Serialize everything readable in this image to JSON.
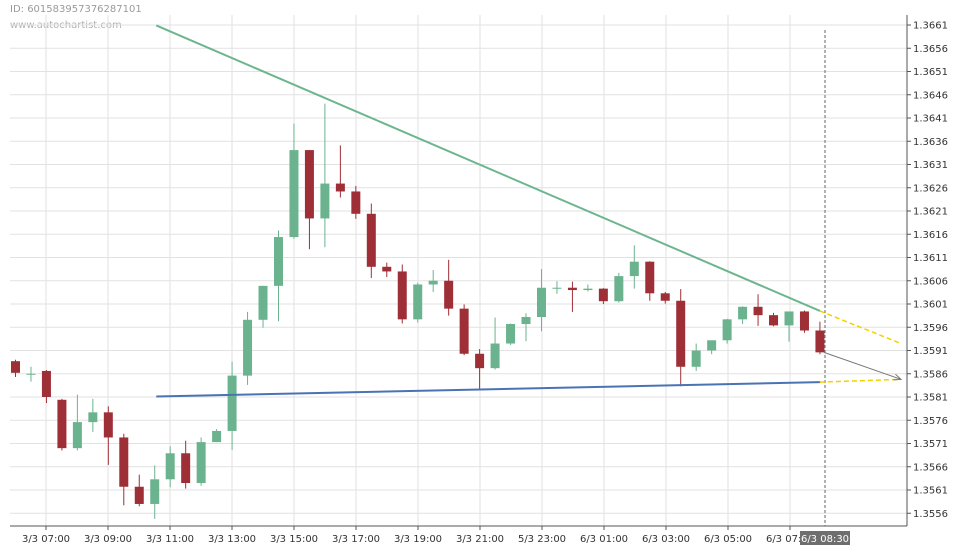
{
  "header": {
    "id_label": "ID: 6015839573762871​01",
    "watermark": "www.autochartist.com"
  },
  "colors": {
    "bull": "#6bb38e",
    "bear": "#9e2f36",
    "resistance": "#6db58f",
    "support": "#4a73b5",
    "projection": "#f5d000",
    "forecast_arrow": "#777777",
    "grid": "#e2e2e2"
  },
  "chart_data": {
    "type": "candlestick",
    "title": "",
    "xlabel": "",
    "ylabel": "",
    "ylim": [
      1.3553,
      1.3663
    ],
    "y_ticks": [
      "1.3661",
      "1.3656",
      "1.3651",
      "1.3646",
      "1.3641",
      "1.3636",
      "1.3631",
      "1.3626",
      "1.3621",
      "1.3616",
      "1.3611",
      "1.3606",
      "1.3601",
      "1.3596",
      "1.3591",
      "1.3586",
      "1.3581",
      "1.3576",
      "1.3571",
      "1.3566",
      "1.3561",
      "1.3556"
    ],
    "x_ticks": [
      "3/3 07:00",
      "3/3 09:00",
      "3/3 11:00",
      "3/3 13:00",
      "3/3 15:00",
      "3/3 17:00",
      "3/3 19:00",
      "3/3 21:00",
      "5/3 23:00",
      "6/3 01:00",
      "6/3 03:00",
      "6/3 05:00",
      "6/3 07:00"
    ],
    "current_time_label": "6/3 08:30",
    "candles": [
      {
        "o": 1.35887,
        "h": 1.3589,
        "l": 1.35853,
        "c": 1.35862
      },
      {
        "o": 1.3586,
        "h": 1.35875,
        "l": 1.35843,
        "c": 1.3586
      },
      {
        "o": 1.35866,
        "h": 1.35868,
        "l": 1.35797,
        "c": 1.3581
      },
      {
        "o": 1.35804,
        "h": 1.35806,
        "l": 1.35695,
        "c": 1.357
      },
      {
        "o": 1.357,
        "h": 1.35815,
        "l": 1.35695,
        "c": 1.35756
      },
      {
        "o": 1.35756,
        "h": 1.35806,
        "l": 1.35735,
        "c": 1.35777
      },
      {
        "o": 1.35777,
        "h": 1.3579,
        "l": 1.35664,
        "c": 1.35723
      },
      {
        "o": 1.35723,
        "h": 1.35731,
        "l": 1.35577,
        "c": 1.35617
      },
      {
        "o": 1.35617,
        "h": 1.35643,
        "l": 1.35575,
        "c": 1.3558
      },
      {
        "o": 1.3558,
        "h": 1.35663,
        "l": 1.35548,
        "c": 1.35633
      },
      {
        "o": 1.35633,
        "h": 1.35704,
        "l": 1.35616,
        "c": 1.35689
      },
      {
        "o": 1.35689,
        "h": 1.35716,
        "l": 1.35613,
        "c": 1.35625
      },
      {
        "o": 1.35625,
        "h": 1.35723,
        "l": 1.35619,
        "c": 1.35713
      },
      {
        "o": 1.35713,
        "h": 1.35741,
        "l": 1.35713,
        "c": 1.35737
      },
      {
        "o": 1.35737,
        "h": 1.35886,
        "l": 1.35696,
        "c": 1.35856
      },
      {
        "o": 1.35856,
        "h": 1.35993,
        "l": 1.35836,
        "c": 1.35976
      },
      {
        "o": 1.35976,
        "h": 1.36049,
        "l": 1.35959,
        "c": 1.36049
      },
      {
        "o": 1.36049,
        "h": 1.36168,
        "l": 1.35973,
        "c": 1.36154
      },
      {
        "o": 1.36154,
        "h": 1.36398,
        "l": 1.3615,
        "c": 1.36341
      },
      {
        "o": 1.36341,
        "h": 1.36341,
        "l": 1.36128,
        "c": 1.36194
      },
      {
        "o": 1.36194,
        "h": 1.36441,
        "l": 1.36132,
        "c": 1.36269
      },
      {
        "o": 1.36269,
        "h": 1.36351,
        "l": 1.36239,
        "c": 1.36252
      },
      {
        "o": 1.36252,
        "h": 1.36264,
        "l": 1.36193,
        "c": 1.36204
      },
      {
        "o": 1.36204,
        "h": 1.36226,
        "l": 1.36066,
        "c": 1.3609
      },
      {
        "o": 1.3609,
        "h": 1.36099,
        "l": 1.36068,
        "c": 1.3608
      },
      {
        "o": 1.3608,
        "h": 1.36095,
        "l": 1.35968,
        "c": 1.35977
      },
      {
        "o": 1.35977,
        "h": 1.36056,
        "l": 1.3597,
        "c": 1.36052
      },
      {
        "o": 1.36052,
        "h": 1.36083,
        "l": 1.36036,
        "c": 1.3606
      },
      {
        "o": 1.3606,
        "h": 1.36105,
        "l": 1.35985,
        "c": 1.36
      },
      {
        "o": 1.36,
        "h": 1.36009,
        "l": 1.359,
        "c": 1.35903
      },
      {
        "o": 1.35903,
        "h": 1.35913,
        "l": 1.35826,
        "c": 1.35872
      },
      {
        "o": 1.35872,
        "h": 1.35981,
        "l": 1.35869,
        "c": 1.35925
      },
      {
        "o": 1.35925,
        "h": 1.35968,
        "l": 1.35922,
        "c": 1.35967
      },
      {
        "o": 1.35967,
        "h": 1.3599,
        "l": 1.3593,
        "c": 1.35982
      },
      {
        "o": 1.35982,
        "h": 1.36085,
        "l": 1.35951,
        "c": 1.36045
      },
      {
        "o": 1.36045,
        "h": 1.36059,
        "l": 1.36032,
        "c": 1.36045
      },
      {
        "o": 1.36045,
        "h": 1.36058,
        "l": 1.35993,
        "c": 1.3604
      },
      {
        "o": 1.3604,
        "h": 1.36052,
        "l": 1.36037,
        "c": 1.36043
      },
      {
        "o": 1.36043,
        "h": 1.36044,
        "l": 1.3601,
        "c": 1.36016
      },
      {
        "o": 1.36016,
        "h": 1.36077,
        "l": 1.36013,
        "c": 1.3607
      },
      {
        "o": 1.3607,
        "h": 1.36136,
        "l": 1.36043,
        "c": 1.36101
      },
      {
        "o": 1.36101,
        "h": 1.36102,
        "l": 1.36017,
        "c": 1.36033
      },
      {
        "o": 1.36033,
        "h": 1.36036,
        "l": 1.36011,
        "c": 1.36017
      },
      {
        "o": 1.36017,
        "h": 1.36042,
        "l": 1.35833,
        "c": 1.35875
      },
      {
        "o": 1.35875,
        "h": 1.35925,
        "l": 1.35866,
        "c": 1.3591
      },
      {
        "o": 1.3591,
        "h": 1.35931,
        "l": 1.35902,
        "c": 1.35932
      },
      {
        "o": 1.35932,
        "h": 1.35978,
        "l": 1.35925,
        "c": 1.35977
      },
      {
        "o": 1.35977,
        "h": 1.36005,
        "l": 1.35967,
        "c": 1.36004
      },
      {
        "o": 1.36004,
        "h": 1.36031,
        "l": 1.35963,
        "c": 1.35986
      },
      {
        "o": 1.35986,
        "h": 1.35991,
        "l": 1.35962,
        "c": 1.35964
      },
      {
        "o": 1.35964,
        "h": 1.35994,
        "l": 1.35929,
        "c": 1.35994
      },
      {
        "o": 1.35994,
        "h": 1.35996,
        "l": 1.35948,
        "c": 1.35953
      },
      {
        "o": 1.35953,
        "h": 1.35972,
        "l": 1.35902,
        "c": 1.35906
      }
    ],
    "resistance_line": {
      "from": {
        "index": 9.1,
        "y": 1.36609
      },
      "to": {
        "index": 52.0,
        "y": 1.35995
      }
    },
    "support_line": {
      "from": {
        "index": 9.1,
        "y": 1.35811
      },
      "to": {
        "index": 52.0,
        "y": 1.35842
      }
    },
    "projection": {
      "upper_end_y": 1.35925,
      "lower_end_y": 1.35848,
      "arrow_target_y": 1.35848
    }
  }
}
